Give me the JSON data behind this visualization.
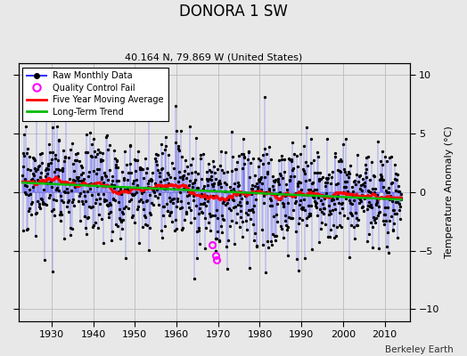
{
  "title": "DONORA 1 SW",
  "subtitle": "40.164 N, 79.869 W (United States)",
  "ylabel": "Temperature Anomaly (°C)",
  "credit": "Berkeley Earth",
  "year_start": 1923,
  "year_end": 2014,
  "xlim": [
    1922,
    2016
  ],
  "ylim": [
    -11,
    11
  ],
  "yticks": [
    -10,
    -5,
    0,
    5,
    10
  ],
  "xticks": [
    1930,
    1940,
    1950,
    1960,
    1970,
    1980,
    1990,
    2000,
    2010
  ],
  "raw_color": "#3333ff",
  "dot_color": "#000000",
  "ma_color": "#ff0000",
  "trend_color": "#00bb00",
  "qc_color": "#ff00ff",
  "background": "#e8e8e8",
  "plot_bg": "#e8e8e8",
  "grid_color": "#bbbbbb",
  "seed": 17,
  "noise_scale": 2.2,
  "ma_window": 60,
  "qc_points": [
    [
      1968.5,
      -4.5
    ],
    [
      1969.3,
      -5.4
    ],
    [
      1969.6,
      -5.8
    ]
  ]
}
